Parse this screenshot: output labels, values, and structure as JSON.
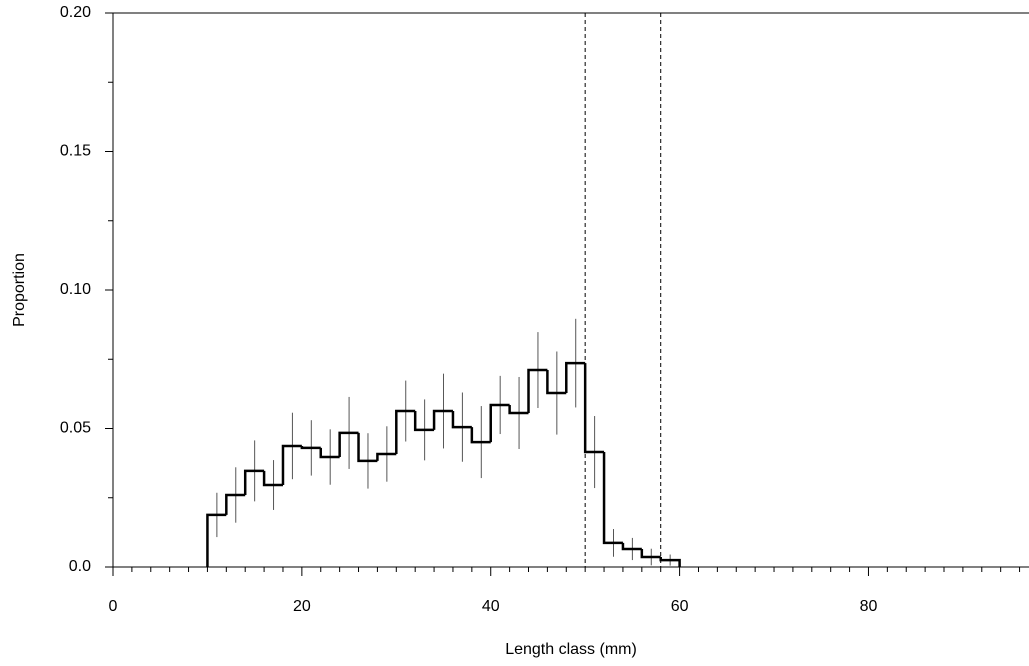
{
  "chart_data": {
    "type": "histogram",
    "xlabel": "Length class (mm)",
    "ylabel": "Proportion",
    "bins": [
      10,
      12,
      14,
      16,
      18,
      20,
      22,
      24,
      26,
      28,
      30,
      32,
      34,
      36,
      38,
      40,
      42,
      44,
      46,
      48,
      50,
      52,
      54,
      56,
      58,
      60
    ],
    "values": [
      0.0188,
      0.026,
      0.0347,
      0.0296,
      0.0437,
      0.043,
      0.0397,
      0.0484,
      0.0383,
      0.0408,
      0.0563,
      0.0495,
      0.0563,
      0.0505,
      0.0451,
      0.0585,
      0.0556,
      0.0711,
      0.0628,
      0.0736,
      0.0415,
      0.0087,
      0.0065,
      0.0036,
      0.0025
    ],
    "errors": [
      0.008,
      0.01,
      0.011,
      0.009,
      0.012,
      0.01,
      0.01,
      0.013,
      0.01,
      0.01,
      0.011,
      0.011,
      0.0135,
      0.0125,
      0.013,
      0.0105,
      0.013,
      0.0137,
      0.015,
      0.016,
      0.013,
      0.005,
      0.004,
      0.003,
      0.002
    ],
    "color": "#000000",
    "error_color": "#555555",
    "vlines": [
      50,
      58
    ],
    "xlim": [
      0,
      97
    ],
    "ylim": [
      0,
      0.2
    ],
    "xticks": [
      0,
      20,
      40,
      60,
      80
    ],
    "xminorticks": [
      2,
      4,
      6,
      8,
      10,
      12,
      14,
      16,
      18,
      22,
      24,
      26,
      28,
      30,
      32,
      34,
      36,
      38,
      42,
      44,
      46,
      48,
      50,
      52,
      54,
      56,
      58,
      62,
      64,
      66,
      68,
      70,
      72,
      74,
      76,
      78,
      82,
      84,
      86,
      88,
      90,
      92,
      94,
      96
    ],
    "yticks": [
      {
        "value": 0,
        "label": "0.0"
      },
      0.05,
      {
        "value": 0.1,
        "label": "0.10"
      },
      {
        "value": 0.15,
        "label": "0.15"
      },
      {
        "value": 0.2,
        "label": "0.20"
      }
    ],
    "yminorticks": [
      0.025,
      0.075,
      0.125,
      0.175
    ]
  }
}
